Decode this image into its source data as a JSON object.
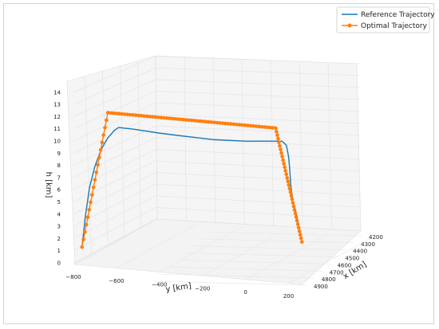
{
  "chart_data": {
    "type": "line",
    "projection": "3d",
    "zlabel": "h [km]",
    "ylabel": "y [km]",
    "xlabel": "x [km]",
    "z_ticks": [
      "0",
      "1",
      "2",
      "3",
      "4",
      "5",
      "6",
      "7",
      "8",
      "9",
      "10",
      "11",
      "12",
      "13",
      "14"
    ],
    "y_ticks": [
      "−800",
      "−600",
      "−400",
      "−200",
      "0",
      "200"
    ],
    "x_ticks": [
      "4200",
      "4300",
      "4400",
      "4500",
      "4600",
      "4700",
      "4800",
      "4900"
    ],
    "legend": {
      "location": "top-right",
      "entries": [
        {
          "name": "Reference Trajectory",
          "color": "#1f77b4",
          "marker": "none"
        },
        {
          "name": "Optimal Trajectory",
          "color": "#ff7f0e",
          "marker": "circle"
        }
      ]
    },
    "series": [
      {
        "name": "Reference Trajectory",
        "color": "#1f77b4",
        "points": [
          {
            "y": -760,
            "h": 1.5
          },
          {
            "y": -745,
            "h": 4.0
          },
          {
            "y": -725,
            "h": 6.5
          },
          {
            "y": -700,
            "h": 8.3
          },
          {
            "y": -670,
            "h": 9.8
          },
          {
            "y": -640,
            "h": 10.8
          },
          {
            "y": -610,
            "h": 11.5
          },
          {
            "y": -590,
            "h": 11.8
          },
          {
            "y": -520,
            "h": 11.85
          },
          {
            "y": -400,
            "h": 11.85
          },
          {
            "y": -300,
            "h": 11.9
          },
          {
            "y": -150,
            "h": 12.0
          },
          {
            "y": 0,
            "h": 12.3
          },
          {
            "y": 100,
            "h": 12.6
          },
          {
            "y": 170,
            "h": 12.8
          },
          {
            "y": 190,
            "h": 12.5
          },
          {
            "y": 200,
            "h": 11.5
          },
          {
            "y": 205,
            "h": 10.5
          },
          {
            "y": 210,
            "h": 9.0
          },
          {
            "y": 220,
            "h": 7.5
          },
          {
            "y": 235,
            "h": 6.5
          },
          {
            "y": 250,
            "h": 5.0
          },
          {
            "y": 262,
            "h": 3.9
          }
        ]
      },
      {
        "name": "Optimal Trajectory",
        "color": "#ff7f0e",
        "points": [
          {
            "y": -760,
            "h": 1.5
          },
          {
            "y": -640,
            "h": 12.9
          },
          {
            "y": 140,
            "h": 13.9
          },
          {
            "y": 262,
            "h": 3.9
          }
        ]
      }
    ]
  }
}
